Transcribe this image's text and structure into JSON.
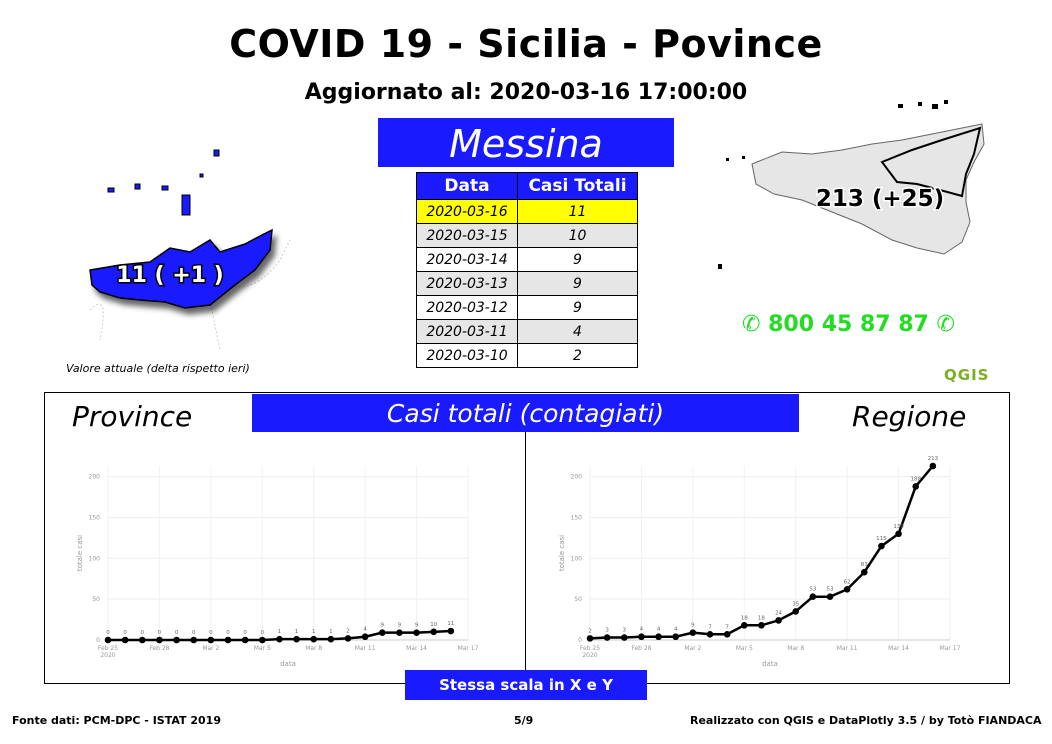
{
  "header": {
    "title": "COVID 19 - Sicilia - Povince",
    "updated": "Aggiornato al: 2020-03-16 17:00:00"
  },
  "province": {
    "name": "Messina",
    "map_label": "11 ( +1 )",
    "map_caption": "Valore attuale (delta rispetto ieri)"
  },
  "table": {
    "headers": [
      "Data",
      "Casi Totali"
    ],
    "rows": [
      {
        "date": "2020-03-16",
        "value": "11"
      },
      {
        "date": "2020-03-15",
        "value": "10"
      },
      {
        "date": "2020-03-14",
        "value": "9"
      },
      {
        "date": "2020-03-13",
        "value": "9"
      },
      {
        "date": "2020-03-12",
        "value": "9"
      },
      {
        "date": "2020-03-11",
        "value": "4"
      },
      {
        "date": "2020-03-10",
        "value": "2"
      }
    ]
  },
  "region": {
    "map_label": "213 (+25)",
    "phone": "800 45 87 87"
  },
  "brand": {
    "qgis": "QGIS"
  },
  "charts_section": {
    "banner": "Casi totali (contagiati)",
    "left_label": "Province",
    "right_label": "Regione",
    "scale_note": "Stessa scala in X e Y"
  },
  "footer": {
    "source": "Fonte dati: PCM-DPC - ISTAT 2019",
    "page": "5/9",
    "credits": "Realizzato con QGIS e DataPlotly 3.5 / by Totò FIANDACA"
  },
  "colors": {
    "accent_blue": "#1a1aff",
    "highlight": "#ffff00",
    "phone_green": "#22dd22",
    "qgis_green": "#7ab020"
  },
  "chart_data": [
    {
      "type": "line",
      "ylabel": "totale casi",
      "xlabel": "data",
      "ylim": [
        0,
        213
      ],
      "yticks": [
        0,
        50,
        100,
        150,
        200
      ],
      "xtick_labels": [
        "Feb 25\n2020",
        "Feb 28",
        "Mar 2",
        "Mar 5",
        "Mar 8",
        "Mar 11",
        "Mar 14",
        "Mar 17"
      ],
      "x": [
        "2020-02-25",
        "2020-02-26",
        "2020-02-27",
        "2020-02-28",
        "2020-02-29",
        "2020-03-01",
        "2020-03-02",
        "2020-03-03",
        "2020-03-04",
        "2020-03-05",
        "2020-03-06",
        "2020-03-07",
        "2020-03-08",
        "2020-03-09",
        "2020-03-10",
        "2020-03-11",
        "2020-03-12",
        "2020-03-13",
        "2020-03-14",
        "2020-03-15",
        "2020-03-16"
      ],
      "values": [
        0,
        0,
        0,
        0,
        0,
        0,
        0,
        0,
        0,
        0,
        1,
        1,
        1,
        1,
        2,
        4,
        9,
        9,
        9,
        10,
        11
      ],
      "grid": true
    },
    {
      "type": "line",
      "ylabel": "totale casi",
      "xlabel": "data",
      "ylim": [
        0,
        213
      ],
      "yticks": [
        0,
        50,
        100,
        150,
        200
      ],
      "xtick_labels": [
        "Feb 25\n2020",
        "Feb 28",
        "Mar 2",
        "Mar 5",
        "Mar 8",
        "Mar 11",
        "Mar 14",
        "Mar 17"
      ],
      "x": [
        "2020-02-25",
        "2020-02-26",
        "2020-02-27",
        "2020-02-28",
        "2020-02-29",
        "2020-03-01",
        "2020-03-02",
        "2020-03-03",
        "2020-03-04",
        "2020-03-05",
        "2020-03-06",
        "2020-03-07",
        "2020-03-08",
        "2020-03-09",
        "2020-03-10",
        "2020-03-11",
        "2020-03-12",
        "2020-03-13",
        "2020-03-14",
        "2020-03-15",
        "2020-03-16"
      ],
      "values": [
        2,
        3,
        3,
        4,
        4,
        4,
        9,
        7,
        7,
        18,
        18,
        24,
        35,
        53,
        53,
        62,
        83,
        115,
        130,
        188,
        213
      ],
      "grid": true
    }
  ]
}
